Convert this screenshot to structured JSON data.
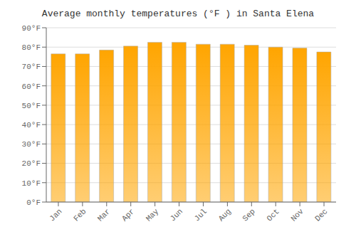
{
  "chart_data": {
    "type": "bar",
    "title": "Average monthly temperatures (°F ) in Santa Elena",
    "categories": [
      "Jan",
      "Feb",
      "Mar",
      "Apr",
      "May",
      "Jun",
      "Jul",
      "Aug",
      "Sep",
      "Oct",
      "Nov",
      "Dec"
    ],
    "values": [
      76.5,
      76.5,
      78.5,
      80.5,
      82.5,
      82.5,
      81.5,
      81.5,
      81.0,
      80.0,
      79.5,
      77.5
    ],
    "color": "#FFA500",
    "ylim": [
      0,
      90
    ],
    "yticks": [
      {
        "value": 0,
        "label": "0°F"
      },
      {
        "value": 10,
        "label": "10°F"
      },
      {
        "value": 20,
        "label": "20°F"
      },
      {
        "value": 30,
        "label": "30°F"
      },
      {
        "value": 40,
        "label": "40°F"
      },
      {
        "value": 50,
        "label": "50°F"
      },
      {
        "value": 60,
        "label": "60°F"
      },
      {
        "value": 70,
        "label": "70°F"
      },
      {
        "value": 80,
        "label": "80°F"
      },
      {
        "value": 90,
        "label": "90°F"
      }
    ],
    "grid": true
  }
}
